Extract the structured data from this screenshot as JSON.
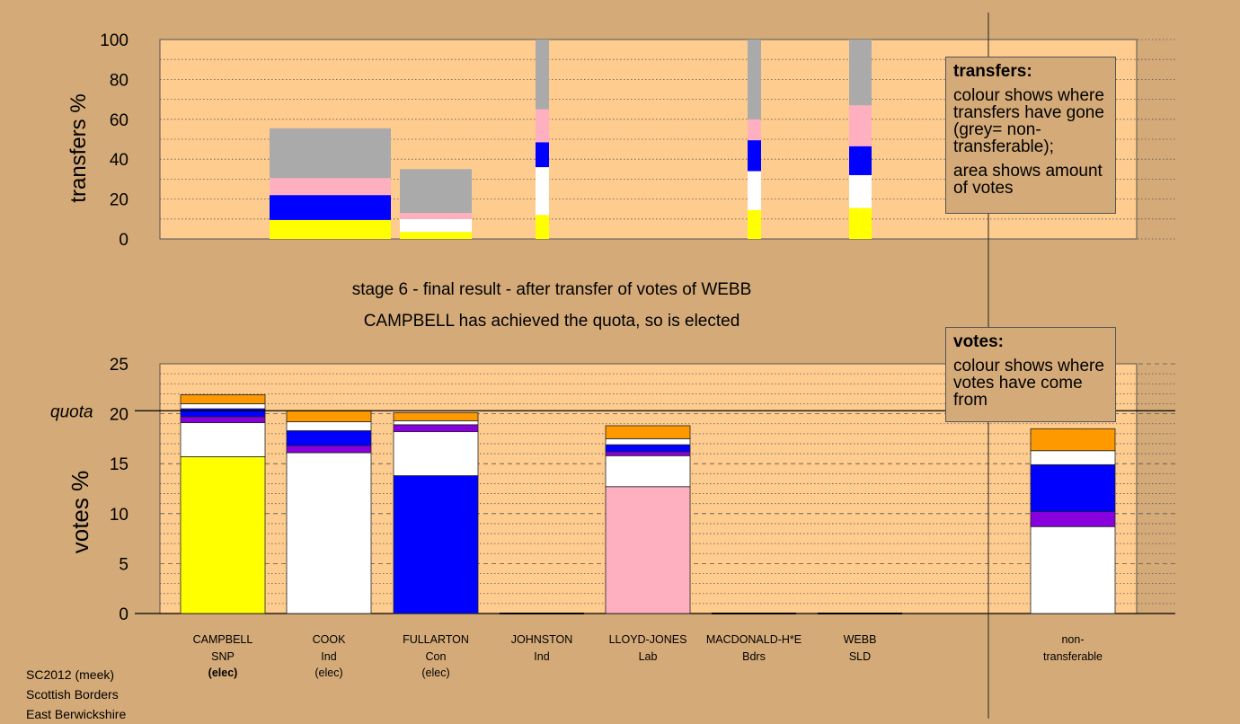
{
  "stage_title": "stage 6 - final result - after transfer of votes of WEBB",
  "stage_subtitle": "CAMPBELL has achieved the quota, so is elected",
  "legend_transfers": {
    "title": "transfers:",
    "line1": "colour shows where transfers have gone (grey= non-transferable);",
    "line2": "area shows amount of votes"
  },
  "legend_votes": {
    "title": "votes:",
    "line1": "colour shows where votes have come from"
  },
  "footer": [
    "SC2012 (meek)",
    "Scottish Borders",
    "East Berwickshire"
  ],
  "colors": {
    "bg": "#d4aa78",
    "plot_bg": "#ffcc8f",
    "snp": "#ffff00",
    "ind": "#ffffff",
    "con": "#0000ff",
    "lab": "#ffb0c0",
    "bdrs": "#8800dd",
    "sld": "#ff9900",
    "nontrans": "#aaaaaa"
  },
  "chart_data": [
    {
      "type": "bar",
      "stacked": true,
      "ylabel": "transfers %",
      "ylim": [
        0,
        100
      ],
      "yticks": [
        0,
        20,
        40,
        60,
        80,
        100
      ],
      "grid": "dotted",
      "bars": [
        {
          "candidate": "CAMPBELL",
          "width": "wide",
          "segments": [
            {
              "color": "#ffff00",
              "value": 9.5
            },
            {
              "color": "#0000ff",
              "value": 12.5
            },
            {
              "color": "#ffb0c0",
              "value": 8.5
            },
            {
              "color": "#aaaaaa",
              "value": 25
            }
          ]
        },
        {
          "candidate": "COOK",
          "width": "medium",
          "segments": [
            {
              "color": "#ffff00",
              "value": 3.5
            },
            {
              "color": "#ffffff",
              "value": 6.5
            },
            {
              "color": "#ffb0c0",
              "value": 3
            },
            {
              "color": "#aaaaaa",
              "value": 22
            }
          ]
        },
        {
          "candidate": "JOHNSTON",
          "width": "thin",
          "segments": [
            {
              "color": "#ffff00",
              "value": 12
            },
            {
              "color": "#ffffff",
              "value": 24
            },
            {
              "color": "#0000ff",
              "value": 12.5
            },
            {
              "color": "#ffb0c0",
              "value": 16.5
            },
            {
              "color": "#aaaaaa",
              "value": 35
            }
          ]
        },
        {
          "candidate": "MACDONALD-H*E",
          "width": "thin",
          "segments": [
            {
              "color": "#ffff00",
              "value": 14.5
            },
            {
              "color": "#ffffff",
              "value": 19.5
            },
            {
              "color": "#0000ff",
              "value": 15.5
            },
            {
              "color": "#ffb0c0",
              "value": 10.5
            },
            {
              "color": "#aaaaaa",
              "value": 40
            }
          ]
        },
        {
          "candidate": "WEBB",
          "width": "thin",
          "segments": [
            {
              "color": "#ffff00",
              "value": 15.5
            },
            {
              "color": "#ffffff",
              "value": 16.5
            },
            {
              "color": "#0000ff",
              "value": 14.5
            },
            {
              "color": "#ffb0c0",
              "value": 20.5
            },
            {
              "color": "#aaaaaa",
              "value": 33
            }
          ]
        }
      ]
    },
    {
      "type": "bar",
      "stacked": true,
      "ylabel": "votes %",
      "ylim": [
        0,
        25
      ],
      "yticks": [
        0,
        5,
        10,
        15,
        20,
        25
      ],
      "quota": 20.3,
      "quota_label": "quota",
      "grid": "dashed",
      "categories": [
        {
          "name": "CAMPBELL",
          "party": "SNP",
          "status": "(elec)",
          "bold_status": true
        },
        {
          "name": "COOK",
          "party": "Ind",
          "status": "(elec)",
          "bold_status": false
        },
        {
          "name": "FULLARTON",
          "party": "Con",
          "status": "(elec)",
          "bold_status": false
        },
        {
          "name": "JOHNSTON",
          "party": "Ind",
          "status": "",
          "bold_status": false
        },
        {
          "name": "LLOYD-JONES",
          "party": "Lab",
          "status": "",
          "bold_status": false
        },
        {
          "name": "MACDONALD-H*E",
          "party": "Bdrs",
          "status": "",
          "bold_status": false
        },
        {
          "name": "WEBB",
          "party": "SLD",
          "status": "",
          "bold_status": false
        },
        {
          "name": "non-",
          "party": "transferable",
          "status": "",
          "bold_status": false
        }
      ],
      "stacks": [
        [
          {
            "color": "#ffff00",
            "value": 15.7
          },
          {
            "color": "#ffffff",
            "value": 3.4
          },
          {
            "color": "#8800dd",
            "value": 0.6
          },
          {
            "color": "#0000ff",
            "value": 0.8
          },
          {
            "color": "#ffffff",
            "value": 0.5
          },
          {
            "color": "#ff9900",
            "value": 0.9
          }
        ],
        [
          {
            "color": "#ffffff",
            "value": 16.1
          },
          {
            "color": "#8800dd",
            "value": 0.7
          },
          {
            "color": "#0000ff",
            "value": 1.5
          },
          {
            "color": "#ffffff",
            "value": 0.9
          },
          {
            "color": "#ff9900",
            "value": 1.1
          }
        ],
        [
          {
            "color": "#0000ff",
            "value": 13.8
          },
          {
            "color": "#ffffff",
            "value": 4.4
          },
          {
            "color": "#8800dd",
            "value": 0.7
          },
          {
            "color": "#ffffff",
            "value": 0.4
          },
          {
            "color": "#ff9900",
            "value": 0.8
          }
        ],
        [],
        [
          {
            "color": "#ffb0c0",
            "value": 12.7
          },
          {
            "color": "#ffffff",
            "value": 3.1
          },
          {
            "color": "#8800dd",
            "value": 0.4
          },
          {
            "color": "#0000ff",
            "value": 0.7
          },
          {
            "color": "#ffffff",
            "value": 0.6
          },
          {
            "color": "#ff9900",
            "value": 1.3
          }
        ],
        [],
        [],
        [
          {
            "color": "#ffffff",
            "value": 8.7
          },
          {
            "color": "#8800dd",
            "value": 1.5
          },
          {
            "color": "#0000ff",
            "value": 4.7
          },
          {
            "color": "#ffffff",
            "value": 1.4
          },
          {
            "color": "#ff9900",
            "value": 2.2
          }
        ]
      ]
    }
  ]
}
